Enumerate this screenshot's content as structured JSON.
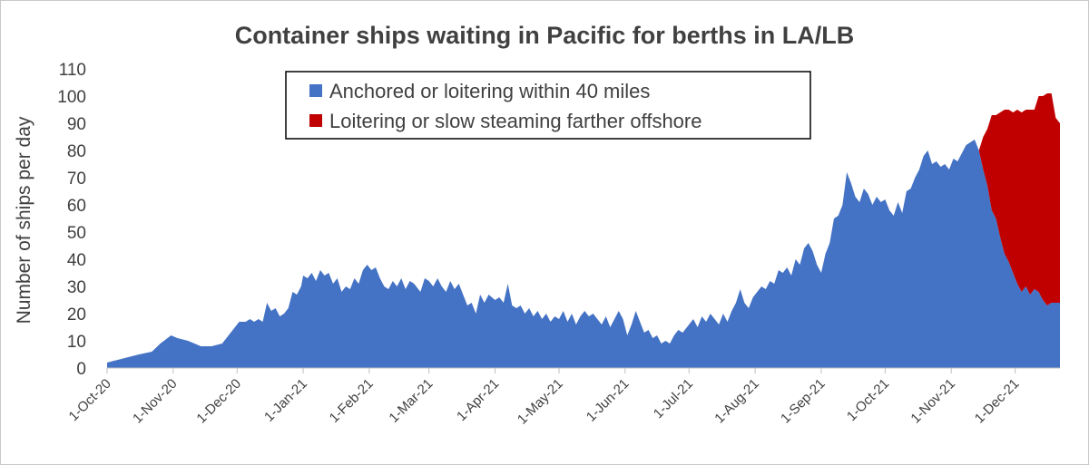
{
  "chart_data": {
    "type": "area",
    "title": "Container ships waiting in Pacific for berths in LA/LB",
    "xlabel": "",
    "ylabel": "Number of ships per day",
    "ylim": [
      0,
      110
    ],
    "yticks": [
      0,
      10,
      20,
      30,
      40,
      50,
      60,
      70,
      80,
      90,
      100,
      110
    ],
    "xlim": [
      "2020-10-01",
      "2021-12-22"
    ],
    "xticks": [
      {
        "date": "2020-10-01",
        "label": "1-Oct-20"
      },
      {
        "date": "2020-11-01",
        "label": "1-Nov-20"
      },
      {
        "date": "2020-12-01",
        "label": "1-Dec-20"
      },
      {
        "date": "2021-01-01",
        "label": "1-Jan-21"
      },
      {
        "date": "2021-02-01",
        "label": "1-Feb-21"
      },
      {
        "date": "2021-03-01",
        "label": "1-Mar-21"
      },
      {
        "date": "2021-04-01",
        "label": "1-Apr-21"
      },
      {
        "date": "2021-05-01",
        "label": "1-May-21"
      },
      {
        "date": "2021-06-01",
        "label": "1-Jun-21"
      },
      {
        "date": "2021-07-01",
        "label": "1-Jul-21"
      },
      {
        "date": "2021-08-01",
        "label": "1-Aug-21"
      },
      {
        "date": "2021-09-01",
        "label": "1-Sep-21"
      },
      {
        "date": "2021-10-01",
        "label": "1-Oct-21"
      },
      {
        "date": "2021-11-01",
        "label": "1-Nov-21"
      },
      {
        "date": "2021-12-01",
        "label": "1-Dec-21"
      }
    ],
    "stacked": true,
    "legend_position": "top-center",
    "grid": false,
    "series": [
      {
        "name": "Anchored or loitering within 40 miles",
        "color": "#4472C4",
        "points": [
          [
            "2020-10-01",
            2
          ],
          [
            "2020-10-06",
            3
          ],
          [
            "2020-10-11",
            4
          ],
          [
            "2020-10-16",
            5
          ],
          [
            "2020-10-22",
            6
          ],
          [
            "2020-10-26",
            9
          ],
          [
            "2020-10-31",
            12
          ],
          [
            "2020-11-03",
            11
          ],
          [
            "2020-11-08",
            10
          ],
          [
            "2020-11-14",
            8
          ],
          [
            "2020-11-19",
            8
          ],
          [
            "2020-11-24",
            9
          ],
          [
            "2020-11-28",
            13
          ],
          [
            "2020-12-02",
            17
          ],
          [
            "2020-12-05",
            17
          ],
          [
            "2020-12-07",
            18
          ],
          [
            "2020-12-09",
            17
          ],
          [
            "2020-12-11",
            18
          ],
          [
            "2020-12-13",
            17
          ],
          [
            "2020-12-15",
            24
          ],
          [
            "2020-12-17",
            21
          ],
          [
            "2020-12-19",
            22
          ],
          [
            "2020-12-21",
            19
          ],
          [
            "2020-12-23",
            20
          ],
          [
            "2020-12-25",
            22
          ],
          [
            "2020-12-27",
            28
          ],
          [
            "2020-12-29",
            27
          ],
          [
            "2020-12-31",
            30
          ],
          [
            "2021-01-01",
            34
          ],
          [
            "2021-01-03",
            33
          ],
          [
            "2021-01-05",
            35
          ],
          [
            "2021-01-07",
            32
          ],
          [
            "2021-01-09",
            36
          ],
          [
            "2021-01-11",
            34
          ],
          [
            "2021-01-13",
            35
          ],
          [
            "2021-01-15",
            31
          ],
          [
            "2021-01-17",
            33
          ],
          [
            "2021-01-19",
            28
          ],
          [
            "2021-01-21",
            30
          ],
          [
            "2021-01-23",
            29
          ],
          [
            "2021-01-25",
            33
          ],
          [
            "2021-01-27",
            31
          ],
          [
            "2021-01-29",
            36
          ],
          [
            "2021-01-31",
            38
          ],
          [
            "2021-02-02",
            36
          ],
          [
            "2021-02-04",
            37
          ],
          [
            "2021-02-06",
            33
          ],
          [
            "2021-02-08",
            30
          ],
          [
            "2021-02-10",
            29
          ],
          [
            "2021-02-12",
            32
          ],
          [
            "2021-02-14",
            30
          ],
          [
            "2021-02-16",
            33
          ],
          [
            "2021-02-18",
            29
          ],
          [
            "2021-02-20",
            32
          ],
          [
            "2021-02-22",
            31
          ],
          [
            "2021-02-25",
            28
          ],
          [
            "2021-02-27",
            33
          ],
          [
            "2021-03-01",
            32
          ],
          [
            "2021-03-03",
            30
          ],
          [
            "2021-03-05",
            33
          ],
          [
            "2021-03-07",
            30
          ],
          [
            "2021-03-09",
            28
          ],
          [
            "2021-03-11",
            32
          ],
          [
            "2021-03-13",
            29
          ],
          [
            "2021-03-15",
            31
          ],
          [
            "2021-03-17",
            27
          ],
          [
            "2021-03-19",
            23
          ],
          [
            "2021-03-21",
            24
          ],
          [
            "2021-03-23",
            20
          ],
          [
            "2021-03-25",
            27
          ],
          [
            "2021-03-27",
            24
          ],
          [
            "2021-03-29",
            27
          ],
          [
            "2021-04-01",
            25
          ],
          [
            "2021-04-03",
            26
          ],
          [
            "2021-04-05",
            24
          ],
          [
            "2021-04-07",
            31
          ],
          [
            "2021-04-09",
            23
          ],
          [
            "2021-04-11",
            22
          ],
          [
            "2021-04-13",
            23
          ],
          [
            "2021-04-15",
            20
          ],
          [
            "2021-04-17",
            22
          ],
          [
            "2021-04-19",
            19
          ],
          [
            "2021-04-21",
            21
          ],
          [
            "2021-04-23",
            18
          ],
          [
            "2021-04-25",
            20
          ],
          [
            "2021-04-27",
            17
          ],
          [
            "2021-04-29",
            19
          ],
          [
            "2021-05-01",
            18
          ],
          [
            "2021-05-03",
            21
          ],
          [
            "2021-05-05",
            17
          ],
          [
            "2021-05-07",
            20
          ],
          [
            "2021-05-09",
            16
          ],
          [
            "2021-05-11",
            19
          ],
          [
            "2021-05-13",
            21
          ],
          [
            "2021-05-15",
            19
          ],
          [
            "2021-05-17",
            20
          ],
          [
            "2021-05-19",
            18
          ],
          [
            "2021-05-21",
            16
          ],
          [
            "2021-05-23",
            19
          ],
          [
            "2021-05-25",
            15
          ],
          [
            "2021-05-27",
            18
          ],
          [
            "2021-05-29",
            21
          ],
          [
            "2021-05-31",
            18
          ],
          [
            "2021-06-02",
            12
          ],
          [
            "2021-06-04",
            16
          ],
          [
            "2021-06-06",
            21
          ],
          [
            "2021-06-08",
            17
          ],
          [
            "2021-06-10",
            13
          ],
          [
            "2021-06-12",
            14
          ],
          [
            "2021-06-14",
            11
          ],
          [
            "2021-06-16",
            12
          ],
          [
            "2021-06-18",
            9
          ],
          [
            "2021-06-20",
            10
          ],
          [
            "2021-06-22",
            9
          ],
          [
            "2021-06-24",
            12
          ],
          [
            "2021-06-26",
            14
          ],
          [
            "2021-06-28",
            13
          ],
          [
            "2021-07-01",
            16
          ],
          [
            "2021-07-03",
            18
          ],
          [
            "2021-07-05",
            15
          ],
          [
            "2021-07-07",
            19
          ],
          [
            "2021-07-09",
            17
          ],
          [
            "2021-07-11",
            20
          ],
          [
            "2021-07-13",
            18
          ],
          [
            "2021-07-15",
            16
          ],
          [
            "2021-07-17",
            20
          ],
          [
            "2021-07-19",
            17
          ],
          [
            "2021-07-21",
            21
          ],
          [
            "2021-07-23",
            24
          ],
          [
            "2021-07-25",
            29
          ],
          [
            "2021-07-27",
            24
          ],
          [
            "2021-07-29",
            22
          ],
          [
            "2021-07-31",
            26
          ],
          [
            "2021-08-02",
            28
          ],
          [
            "2021-08-04",
            30
          ],
          [
            "2021-08-06",
            29
          ],
          [
            "2021-08-08",
            32
          ],
          [
            "2021-08-10",
            31
          ],
          [
            "2021-08-12",
            36
          ],
          [
            "2021-08-14",
            35
          ],
          [
            "2021-08-16",
            37
          ],
          [
            "2021-08-18",
            34
          ],
          [
            "2021-08-20",
            40
          ],
          [
            "2021-08-22",
            38
          ],
          [
            "2021-08-24",
            44
          ],
          [
            "2021-08-26",
            46
          ],
          [
            "2021-08-28",
            43
          ],
          [
            "2021-08-30",
            38
          ],
          [
            "2021-09-01",
            35
          ],
          [
            "2021-09-03",
            42
          ],
          [
            "2021-09-05",
            46
          ],
          [
            "2021-09-07",
            55
          ],
          [
            "2021-09-09",
            56
          ],
          [
            "2021-09-11",
            60
          ],
          [
            "2021-09-13",
            72
          ],
          [
            "2021-09-15",
            68
          ],
          [
            "2021-09-17",
            63
          ],
          [
            "2021-09-19",
            61
          ],
          [
            "2021-09-21",
            66
          ],
          [
            "2021-09-23",
            64
          ],
          [
            "2021-09-25",
            60
          ],
          [
            "2021-09-27",
            63
          ],
          [
            "2021-09-29",
            61
          ],
          [
            "2021-10-01",
            62
          ],
          [
            "2021-10-03",
            58
          ],
          [
            "2021-10-05",
            56
          ],
          [
            "2021-10-07",
            61
          ],
          [
            "2021-10-09",
            57
          ],
          [
            "2021-10-11",
            65
          ],
          [
            "2021-10-13",
            66
          ],
          [
            "2021-10-15",
            70
          ],
          [
            "2021-10-17",
            73
          ],
          [
            "2021-10-19",
            78
          ],
          [
            "2021-10-21",
            80
          ],
          [
            "2021-10-23",
            75
          ],
          [
            "2021-10-25",
            76
          ],
          [
            "2021-10-27",
            74
          ],
          [
            "2021-10-29",
            75
          ],
          [
            "2021-10-31",
            73
          ],
          [
            "2021-11-02",
            77
          ],
          [
            "2021-11-04",
            76
          ],
          [
            "2021-11-06",
            79
          ],
          [
            "2021-11-08",
            82
          ],
          [
            "2021-11-10",
            83
          ],
          [
            "2021-11-12",
            84
          ],
          [
            "2021-11-14",
            80
          ],
          [
            "2021-11-16",
            73
          ],
          [
            "2021-11-18",
            67
          ],
          [
            "2021-11-20",
            58
          ],
          [
            "2021-11-22",
            55
          ],
          [
            "2021-11-24",
            48
          ],
          [
            "2021-11-26",
            42
          ],
          [
            "2021-11-28",
            39
          ],
          [
            "2021-11-30",
            35
          ],
          [
            "2021-12-02",
            31
          ],
          [
            "2021-12-04",
            28
          ],
          [
            "2021-12-06",
            30
          ],
          [
            "2021-12-08",
            27
          ],
          [
            "2021-12-10",
            29
          ],
          [
            "2021-12-12",
            28
          ],
          [
            "2021-12-14",
            25
          ],
          [
            "2021-12-16",
            23
          ],
          [
            "2021-12-18",
            24
          ],
          [
            "2021-12-20",
            24
          ],
          [
            "2021-12-22",
            24
          ]
        ]
      },
      {
        "name": "Loitering or slow steaming farther offshore",
        "color": "#C00000",
        "points": [
          [
            "2021-11-14",
            0
          ],
          [
            "2021-11-16",
            12
          ],
          [
            "2021-11-18",
            21
          ],
          [
            "2021-11-20",
            35
          ],
          [
            "2021-11-22",
            38
          ],
          [
            "2021-11-24",
            46
          ],
          [
            "2021-11-26",
            53
          ],
          [
            "2021-11-28",
            56
          ],
          [
            "2021-11-30",
            59
          ],
          [
            "2021-12-02",
            64
          ],
          [
            "2021-12-04",
            66
          ],
          [
            "2021-12-06",
            65
          ],
          [
            "2021-12-08",
            68
          ],
          [
            "2021-12-10",
            66
          ],
          [
            "2021-12-12",
            72
          ],
          [
            "2021-12-14",
            75
          ],
          [
            "2021-12-16",
            78
          ],
          [
            "2021-12-18",
            77
          ],
          [
            "2021-12-20",
            68
          ],
          [
            "2021-12-22",
            66
          ]
        ]
      }
    ]
  }
}
